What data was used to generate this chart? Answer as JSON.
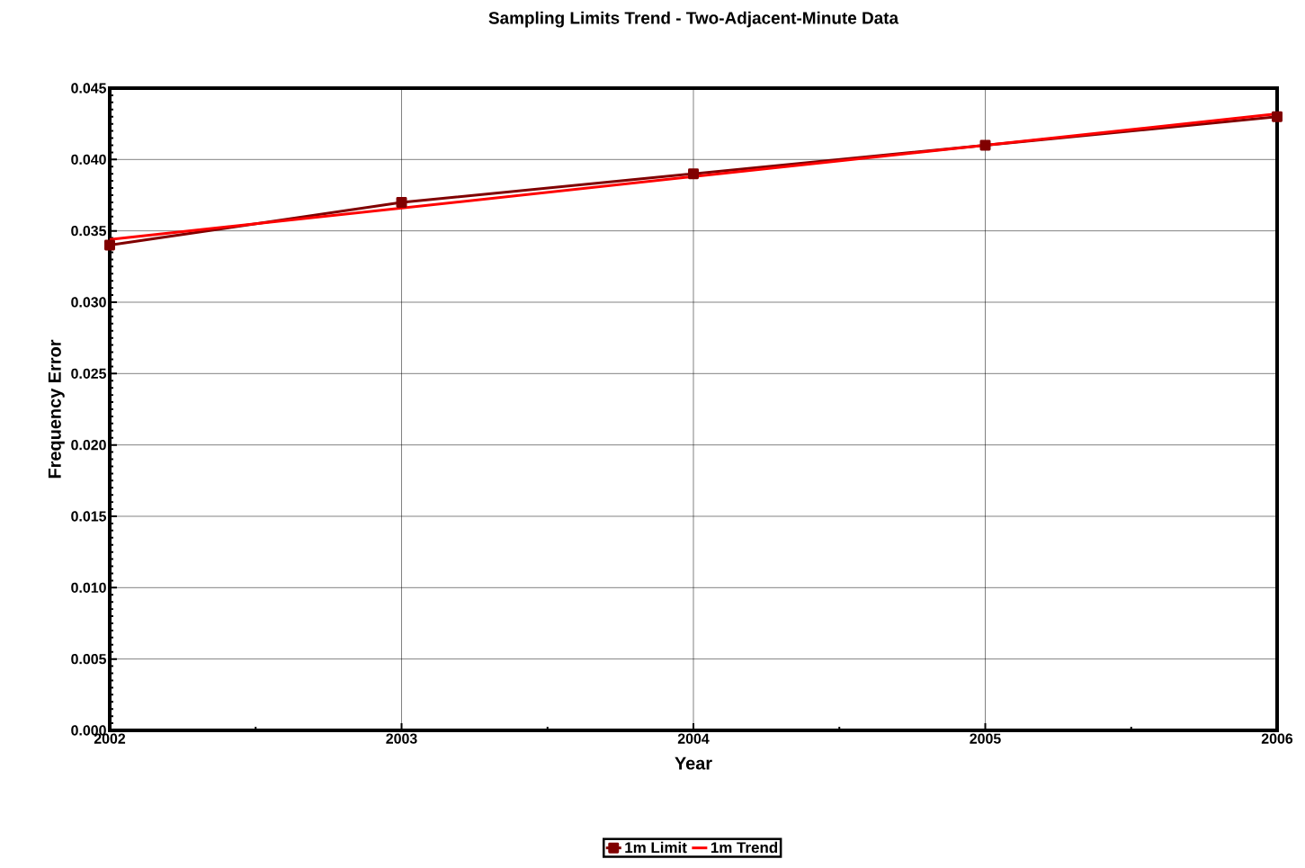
{
  "chart_data": {
    "type": "line",
    "title": "Sampling Limits Trend - Two-Adjacent-Minute Data",
    "xlabel": "Year",
    "ylabel": "Frequency Error",
    "x": [
      2002,
      2003,
      2004,
      2005,
      2006
    ],
    "series": [
      {
        "name": "1m Limit",
        "color": "#800000",
        "values": [
          0.034,
          0.037,
          0.039,
          0.041,
          0.043
        ],
        "marker": "square"
      },
      {
        "name": "1m Trend",
        "color": "#ff0000",
        "x": [
          2002,
          2006
        ],
        "values": [
          0.0344,
          0.0432
        ],
        "marker": "none"
      }
    ],
    "xlim": [
      2002,
      2006
    ],
    "xticks": [
      2002,
      2003,
      2004,
      2005,
      2006
    ],
    "ylim": [
      0,
      0.045
    ],
    "yticks": [
      {
        "value": 0,
        "label": "0.000"
      },
      {
        "value": 0.005,
        "label": "0.005"
      },
      {
        "value": 0.01,
        "label": "0.010"
      },
      {
        "value": 0.015,
        "label": "0.015"
      },
      {
        "value": 0.02,
        "label": "0.020"
      },
      {
        "value": 0.025,
        "label": "0.025"
      },
      {
        "value": 0.03,
        "label": "0.030"
      },
      {
        "value": 0.035,
        "label": "0.035"
      },
      {
        "value": 0.04,
        "label": "0.040"
      },
      {
        "value": 0.045,
        "label": "0.045"
      }
    ],
    "grid": true,
    "legend": "bottom"
  }
}
